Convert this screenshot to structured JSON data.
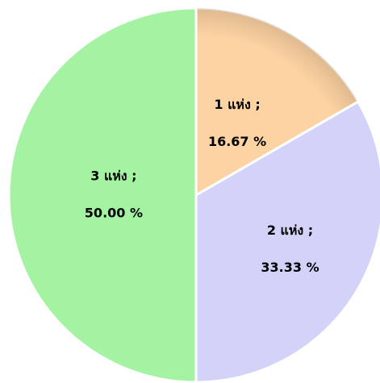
{
  "chart_data": {
    "type": "pie",
    "categories": [
      "1 แห่ง ;",
      "2 แห่ง ;",
      "3 แห่ง ;"
    ],
    "values": [
      16.67,
      33.33,
      50.0
    ],
    "value_labels": [
      "16.67 %",
      "33.33 %",
      "50.00 %"
    ],
    "colors": [
      "#fdd3a3",
      "#d3d3f9",
      "#a3f3a3"
    ]
  }
}
